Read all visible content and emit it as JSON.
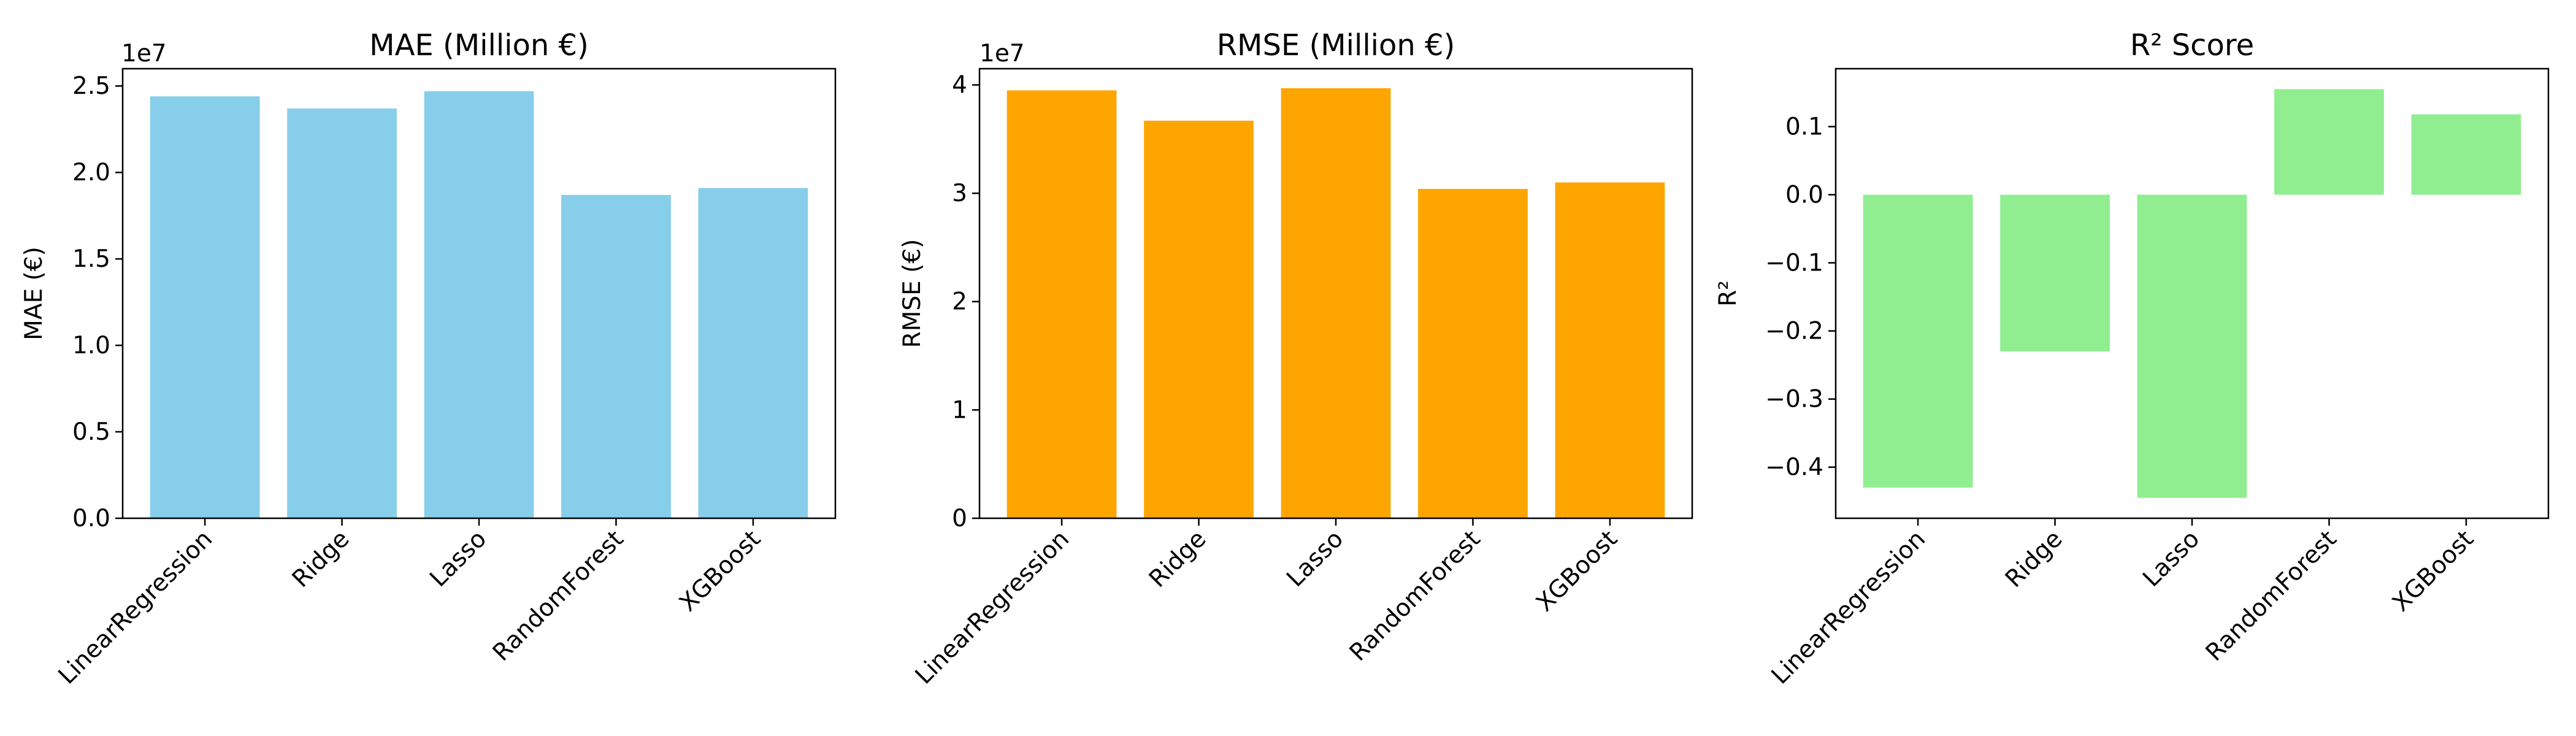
{
  "chart_data": [
    {
      "type": "bar",
      "title": "MAE (Million €)",
      "xlabel": "",
      "ylabel": "MAE (€)",
      "offset_label": "1e7",
      "categories": [
        "LinearRegression",
        "Ridge",
        "Lasso",
        "RandomForest",
        "XGBoost"
      ],
      "values": [
        24400000,
        23700000,
        24700000,
        18700000,
        19100000
      ],
      "ylim": [
        0,
        26000000
      ],
      "yticks": [
        0,
        5000000,
        10000000,
        15000000,
        20000000,
        25000000
      ],
      "ytick_labels": [
        "0.0",
        "0.5",
        "1.0",
        "1.5",
        "2.0",
        "2.5"
      ],
      "color": "#87ceeb",
      "grid": false
    },
    {
      "type": "bar",
      "title": "RMSE (Million €)",
      "xlabel": "",
      "ylabel": "RMSE (€)",
      "offset_label": "1e7",
      "categories": [
        "LinearRegression",
        "Ridge",
        "Lasso",
        "RandomForest",
        "XGBoost"
      ],
      "values": [
        39500000,
        36700000,
        39700000,
        30400000,
        31000000
      ],
      "ylim": [
        0,
        41500000
      ],
      "yticks": [
        0,
        10000000,
        20000000,
        30000000,
        40000000
      ],
      "ytick_labels": [
        "0",
        "1",
        "2",
        "3",
        "4"
      ],
      "color": "#ffa500",
      "grid": false
    },
    {
      "type": "bar",
      "title": "R² Score",
      "xlabel": "",
      "ylabel": "R²",
      "offset_label": "",
      "categories": [
        "LinearRegression",
        "Ridge",
        "Lasso",
        "RandomForest",
        "XGBoost"
      ],
      "values": [
        -0.43,
        -0.23,
        -0.445,
        0.155,
        0.118
      ],
      "ylim": [
        -0.475,
        0.185
      ],
      "yticks": [
        -0.4,
        -0.3,
        -0.2,
        -0.1,
        0.0,
        0.1
      ],
      "ytick_labels": [
        "−0.4",
        "−0.3",
        "−0.2",
        "−0.1",
        "0.0",
        "0.1"
      ],
      "color": "#90ee90",
      "grid": false
    }
  ]
}
